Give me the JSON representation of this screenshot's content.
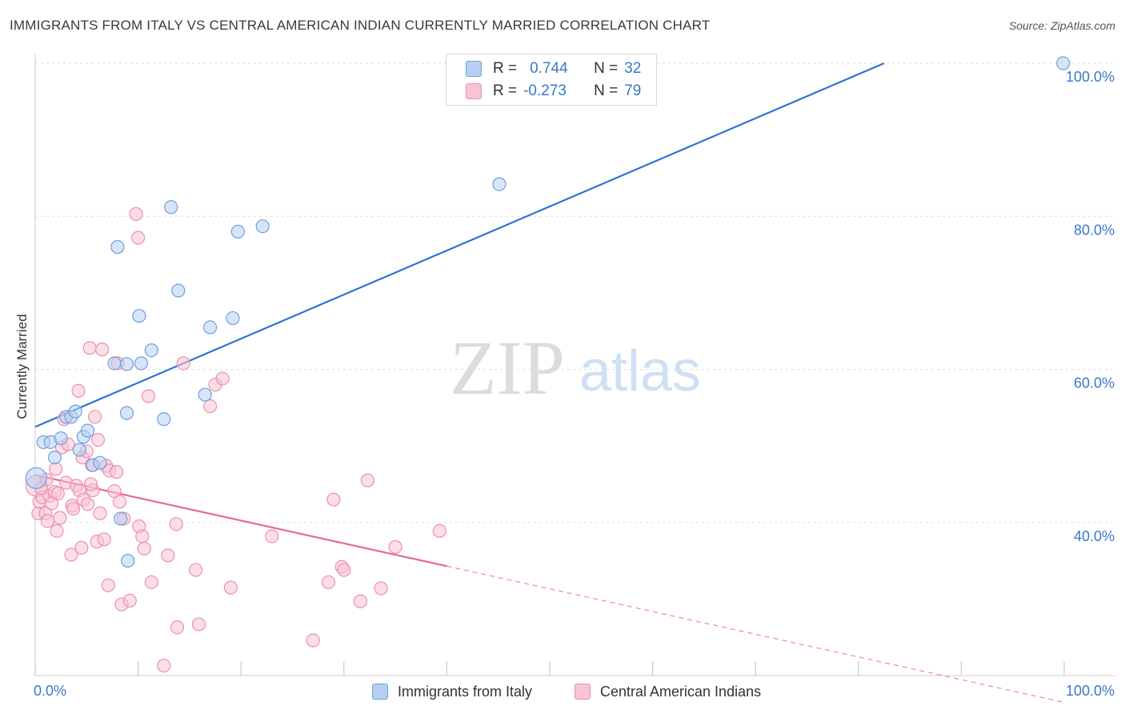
{
  "header": {
    "title": "IMMIGRANTS FROM ITALY VS CENTRAL AMERICAN INDIAN CURRENTLY MARRIED CORRELATION CHART",
    "source": "Source: ZipAtlas.com"
  },
  "watermark": {
    "zip": "ZIP",
    "atlas": "atlas"
  },
  "legend": {
    "rows": [
      {
        "r_label": "R =",
        "r_value": "0.744",
        "n_label": "N =",
        "n_value": "32"
      },
      {
        "r_label": "R =",
        "r_value": "-0.273",
        "n_label": "N =",
        "n_value": "79"
      }
    ]
  },
  "chart_data": {
    "type": "scatter",
    "xlabel": "",
    "ylabel": "Currently Married",
    "x_tick_labels": [
      "0.0%",
      "100.0%"
    ],
    "y_tick_labels": [
      "40.0%",
      "60.0%",
      "80.0%",
      "100.0%"
    ],
    "xlim": [
      0,
      100
    ],
    "ylim": [
      20,
      100
    ],
    "grid": true,
    "legend_position": "bottom",
    "colors": {
      "italy_fill": "#b7d0f2",
      "italy_stroke": "#6e9fdc",
      "italy_line": "#2f74d0",
      "cai_fill": "#f8c3d3",
      "cai_stroke": "#ec8fae",
      "cai_line": "#e56a94",
      "axis_tick_text": "#3a78c9"
    },
    "series": [
      {
        "name": "Immigrants from Italy",
        "trend": {
          "x": [
            0,
            82.5
          ],
          "y": [
            52.5,
            100
          ],
          "dashed_extension": false
        },
        "points": [
          {
            "x": 0.1,
            "y": 45.8,
            "big": true
          },
          {
            "x": 0.8,
            "y": 50.5
          },
          {
            "x": 1.5,
            "y": 50.5
          },
          {
            "x": 1.9,
            "y": 48.5
          },
          {
            "x": 2.5,
            "y": 51.0
          },
          {
            "x": 3.0,
            "y": 53.8
          },
          {
            "x": 3.5,
            "y": 53.8
          },
          {
            "x": 3.9,
            "y": 54.5
          },
          {
            "x": 4.3,
            "y": 49.5
          },
          {
            "x": 4.7,
            "y": 51.2
          },
          {
            "x": 5.1,
            "y": 52.0
          },
          {
            "x": 5.6,
            "y": 47.5
          },
          {
            "x": 6.3,
            "y": 47.8
          },
          {
            "x": 8.3,
            "y": 40.5
          },
          {
            "x": 8.9,
            "y": 60.7
          },
          {
            "x": 7.7,
            "y": 60.8
          },
          {
            "x": 9.0,
            "y": 35.0
          },
          {
            "x": 8.9,
            "y": 54.3
          },
          {
            "x": 10.1,
            "y": 67.0
          },
          {
            "x": 10.3,
            "y": 60.8
          },
          {
            "x": 11.3,
            "y": 62.5
          },
          {
            "x": 12.5,
            "y": 53.5
          },
          {
            "x": 13.2,
            "y": 81.2
          },
          {
            "x": 8.0,
            "y": 76.0
          },
          {
            "x": 13.9,
            "y": 70.3
          },
          {
            "x": 16.5,
            "y": 56.7
          },
          {
            "x": 17.0,
            "y": 65.5
          },
          {
            "x": 19.2,
            "y": 66.7
          },
          {
            "x": 19.7,
            "y": 78.0
          },
          {
            "x": 22.1,
            "y": 78.7
          },
          {
            "x": 45.1,
            "y": 84.2
          },
          {
            "x": 99.9,
            "y": 100.0
          }
        ]
      },
      {
        "name": "Central American Indians",
        "trend": {
          "x": [
            0,
            40.0
          ],
          "y": [
            46.2,
            34.3
          ],
          "dashed_extension": true,
          "dash_to": [
            100,
            16.5
          ]
        },
        "points": [
          {
            "x": 0.1,
            "y": 44.8,
            "big": true
          },
          {
            "x": 0.3,
            "y": 41.2
          },
          {
            "x": 0.4,
            "y": 42.7
          },
          {
            "x": 0.7,
            "y": 43.3
          },
          {
            "x": 1.0,
            "y": 41.2
          },
          {
            "x": 1.2,
            "y": 40.2
          },
          {
            "x": 1.4,
            "y": 43.5
          },
          {
            "x": 1.6,
            "y": 42.5
          },
          {
            "x": 1.9,
            "y": 44.0
          },
          {
            "x": 2.1,
            "y": 38.9
          },
          {
            "x": 2.2,
            "y": 43.8
          },
          {
            "x": 2.6,
            "y": 49.8
          },
          {
            "x": 3.0,
            "y": 45.2
          },
          {
            "x": 3.2,
            "y": 50.2
          },
          {
            "x": 3.5,
            "y": 35.8
          },
          {
            "x": 3.6,
            "y": 42.2
          },
          {
            "x": 3.7,
            "y": 41.8
          },
          {
            "x": 4.0,
            "y": 44.8
          },
          {
            "x": 4.2,
            "y": 57.2
          },
          {
            "x": 4.3,
            "y": 44.2
          },
          {
            "x": 4.5,
            "y": 36.7
          },
          {
            "x": 4.6,
            "y": 48.5
          },
          {
            "x": 4.7,
            "y": 43.0
          },
          {
            "x": 5.0,
            "y": 49.3
          },
          {
            "x": 5.1,
            "y": 42.4
          },
          {
            "x": 5.3,
            "y": 62.8
          },
          {
            "x": 5.5,
            "y": 47.5
          },
          {
            "x": 5.6,
            "y": 44.2
          },
          {
            "x": 5.8,
            "y": 53.8
          },
          {
            "x": 6.0,
            "y": 37.5
          },
          {
            "x": 6.3,
            "y": 41.2
          },
          {
            "x": 6.5,
            "y": 62.6
          },
          {
            "x": 6.7,
            "y": 37.8
          },
          {
            "x": 6.9,
            "y": 47.4
          },
          {
            "x": 7.1,
            "y": 31.8
          },
          {
            "x": 7.2,
            "y": 46.8
          },
          {
            "x": 7.7,
            "y": 44.1
          },
          {
            "x": 7.9,
            "y": 46.6
          },
          {
            "x": 8.0,
            "y": 60.8
          },
          {
            "x": 8.2,
            "y": 42.7
          },
          {
            "x": 8.4,
            "y": 29.3
          },
          {
            "x": 8.6,
            "y": 40.5
          },
          {
            "x": 9.2,
            "y": 29.8
          },
          {
            "x": 9.8,
            "y": 80.3
          },
          {
            "x": 10.0,
            "y": 77.2
          },
          {
            "x": 10.1,
            "y": 39.5
          },
          {
            "x": 10.4,
            "y": 38.2
          },
          {
            "x": 10.6,
            "y": 36.6
          },
          {
            "x": 11.0,
            "y": 56.5
          },
          {
            "x": 11.3,
            "y": 32.2
          },
          {
            "x": 12.5,
            "y": 21.3
          },
          {
            "x": 12.9,
            "y": 35.7
          },
          {
            "x": 13.7,
            "y": 39.8
          },
          {
            "x": 13.8,
            "y": 26.3
          },
          {
            "x": 14.4,
            "y": 60.8
          },
          {
            "x": 15.6,
            "y": 33.8
          },
          {
            "x": 15.9,
            "y": 26.7
          },
          {
            "x": 17.0,
            "y": 55.2
          },
          {
            "x": 17.5,
            "y": 58.0
          },
          {
            "x": 18.2,
            "y": 58.8
          },
          {
            "x": 19.0,
            "y": 31.5
          },
          {
            "x": 23.0,
            "y": 38.2
          },
          {
            "x": 27.0,
            "y": 24.6
          },
          {
            "x": 28.5,
            "y": 32.2
          },
          {
            "x": 29.0,
            "y": 43.0
          },
          {
            "x": 29.8,
            "y": 34.2
          },
          {
            "x": 30.0,
            "y": 33.8
          },
          {
            "x": 31.6,
            "y": 29.7
          },
          {
            "x": 32.3,
            "y": 45.5
          },
          {
            "x": 33.6,
            "y": 31.4
          },
          {
            "x": 35.0,
            "y": 36.8
          },
          {
            "x": 39.3,
            "y": 38.9
          },
          {
            "x": 1.1,
            "y": 45.6
          },
          {
            "x": 2.4,
            "y": 40.6
          },
          {
            "x": 2.0,
            "y": 47.0
          },
          {
            "x": 6.1,
            "y": 50.8
          },
          {
            "x": 0.6,
            "y": 44.5
          },
          {
            "x": 2.8,
            "y": 53.5
          },
          {
            "x": 5.4,
            "y": 45.0
          }
        ]
      }
    ]
  }
}
